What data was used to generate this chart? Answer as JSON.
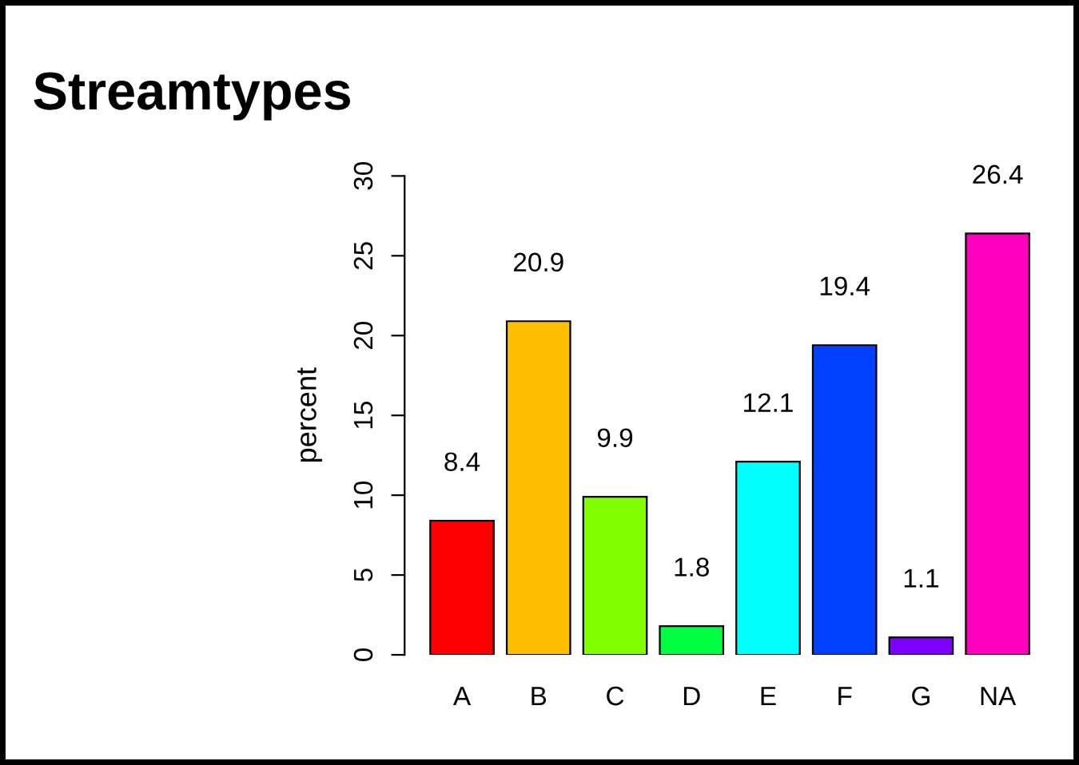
{
  "chart_data": {
    "type": "bar",
    "title": "Streamtypes",
    "ylabel": "percent",
    "categories": [
      "A",
      "B",
      "C",
      "D",
      "E",
      "F",
      "G",
      "NA"
    ],
    "values": [
      8.4,
      20.9,
      9.9,
      1.8,
      12.1,
      19.4,
      1.1,
      26.4
    ],
    "colors": [
      "#ff0000",
      "#ffbf00",
      "#80ff00",
      "#00ff40",
      "#00ffff",
      "#0040ff",
      "#8000ff",
      "#ff00bf"
    ],
    "ylim": [
      0,
      30
    ],
    "yticks": [
      0,
      5,
      10,
      15,
      20,
      25,
      30
    ],
    "data_labels": true,
    "grid": false,
    "legend": false
  }
}
